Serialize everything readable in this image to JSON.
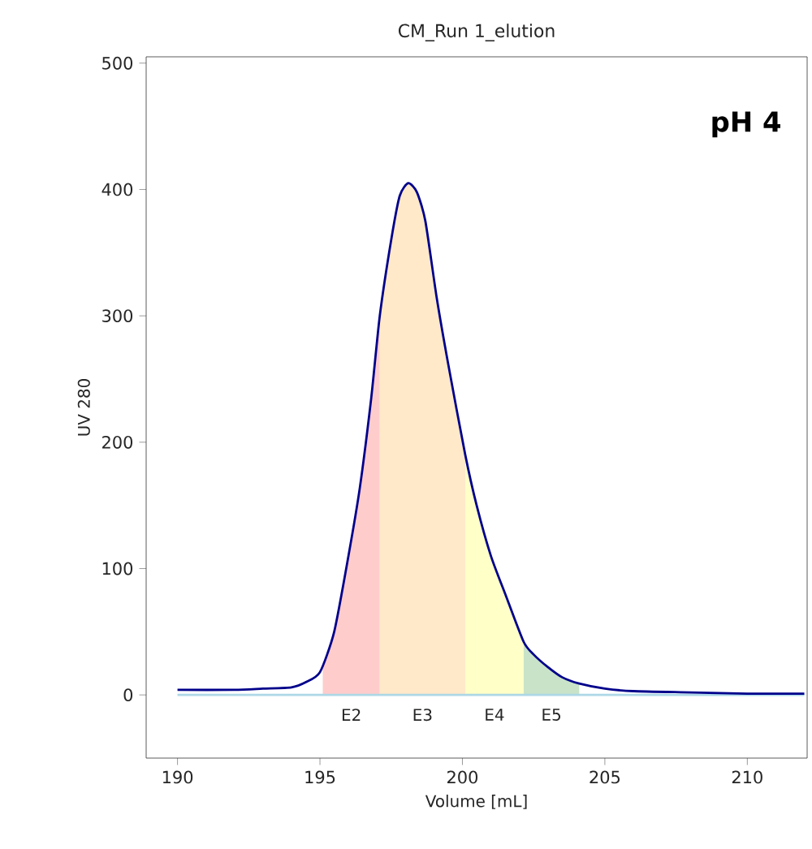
{
  "chart_data": {
    "type": "line",
    "title": "CM_Run 1_elution",
    "xlabel": "Volume [mL]",
    "ylabel": "UV 280",
    "annotations": [
      "pH 4"
    ],
    "xlim": [
      188.9,
      212.1
    ],
    "ylim": [
      -50,
      505
    ],
    "xticks": [
      190,
      195,
      200,
      205,
      210
    ],
    "yticks": [
      0,
      100,
      200,
      300,
      400,
      500
    ],
    "ref_lines": [
      {
        "axis": "y",
        "value": 0,
        "color": "#add8e6"
      }
    ],
    "series": [
      {
        "name": "E2",
        "type": "area",
        "color": "#ffcccc",
        "x": [
          195.1,
          195.5,
          196,
          196.4,
          196.8,
          197.1
        ],
        "values": [
          22,
          50,
          110,
          164,
          235,
          300
        ]
      },
      {
        "name": "E3",
        "type": "area",
        "color": "#ffe9c8",
        "x": [
          197.1,
          197.5,
          197.8,
          198.1,
          198.4,
          198.7,
          199.1,
          199.5,
          200.1
        ],
        "values": [
          300,
          360,
          395,
          405,
          398,
          375,
          314,
          262,
          190
        ]
      },
      {
        "name": "E4",
        "type": "area",
        "color": "#ffffc8",
        "x": [
          200.1,
          200.5,
          201,
          201.5,
          202.15
        ],
        "values": [
          190,
          150,
          110,
          80,
          42
        ]
      },
      {
        "name": "E5",
        "type": "area",
        "color": "#c8e3c8",
        "x": [
          202.15,
          202.5,
          203,
          203.5,
          204.1
        ],
        "values": [
          42,
          32,
          22,
          14,
          9
        ]
      },
      {
        "color": "#00008b",
        "x": [
          190,
          192,
          193,
          194,
          194.5,
          195,
          195.5,
          196,
          196.4,
          196.8,
          197.1,
          197.5,
          197.8,
          198.1,
          198.4,
          198.7,
          199.1,
          199.5,
          200.1,
          200.5,
          201,
          201.5,
          202.15,
          202.5,
          203,
          203.5,
          204.1,
          205,
          206,
          208,
          210,
          212
        ],
        "values": [
          4,
          4,
          5,
          6,
          10,
          18,
          50,
          110,
          164,
          235,
          300,
          360,
          395,
          405,
          398,
          375,
          314,
          262,
          190,
          150,
          110,
          80,
          42,
          32,
          22,
          14,
          9,
          5,
          3,
          2,
          1,
          1
        ]
      }
    ]
  }
}
